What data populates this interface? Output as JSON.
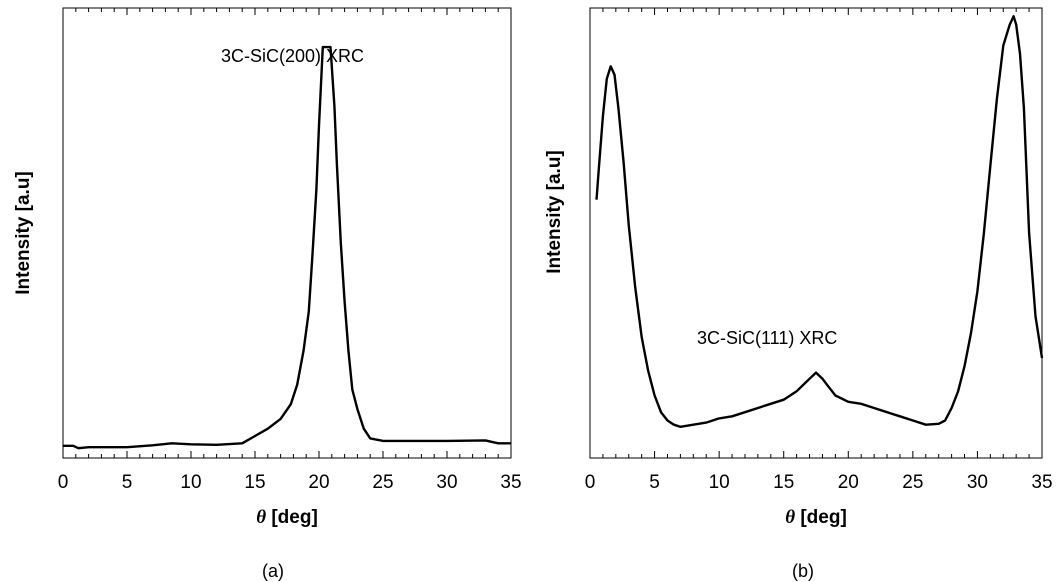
{
  "chart_data": [
    {
      "type": "line",
      "panel_label": "(a)",
      "annotation": "3C-SiC(200) XRC",
      "xlabel_symbol": "θ",
      "xlabel": "[deg]",
      "ylabel": "Intensity [a.u]",
      "xlim": [
        0,
        35
      ],
      "ylim": [
        0,
        1
      ],
      "x_ticks": [
        "0",
        "5",
        "10",
        "15",
        "20",
        "25",
        "30",
        "35"
      ],
      "grid": false,
      "series": [
        {
          "x": [
            0,
            0.8,
            1.2,
            2,
            5,
            7,
            8.5,
            10,
            12,
            14,
            15,
            16,
            17,
            17.8,
            18.3,
            18.8,
            19.2,
            19.5,
            19.8,
            20,
            20.3,
            20.6,
            20.9,
            21.2,
            21.4,
            21.7,
            22,
            22.3,
            22.6,
            23,
            23.5,
            24,
            25,
            30,
            33,
            34,
            35
          ],
          "y": [
            0.025,
            0.025,
            0.02,
            0.022,
            0.022,
            0.026,
            0.03,
            0.028,
            0.027,
            0.03,
            0.045,
            0.06,
            0.08,
            0.11,
            0.15,
            0.22,
            0.3,
            0.42,
            0.55,
            0.68,
            0.84,
            0.84,
            0.84,
            0.72,
            0.6,
            0.44,
            0.32,
            0.22,
            0.14,
            0.1,
            0.06,
            0.04,
            0.035,
            0.035,
            0.036,
            0.03,
            0.03
          ]
        }
      ]
    },
    {
      "type": "line",
      "panel_label": "(b)",
      "annotation": "3C-SiC(111) XRC",
      "xlabel_symbol": "θ",
      "xlabel": "[deg]",
      "ylabel": "Intensity [a.u]",
      "xlim": [
        0,
        35
      ],
      "ylim": [
        0,
        1
      ],
      "x_ticks": [
        "0",
        "5",
        "10",
        "15",
        "20",
        "25",
        "30",
        "35"
      ],
      "grid": false,
      "series": [
        {
          "x": [
            0.5,
            0.7,
            1,
            1.3,
            1.6,
            1.9,
            2.2,
            2.6,
            3,
            3.5,
            4,
            4.5,
            5,
            5.5,
            6,
            6.5,
            7,
            8,
            9,
            10,
            11,
            12,
            13,
            14,
            15,
            16,
            17,
            17.5,
            18,
            18.5,
            19,
            20,
            21,
            22,
            23,
            24,
            25,
            26,
            27,
            27.5,
            28,
            28.5,
            29,
            29.5,
            30,
            30.5,
            31,
            31.5,
            32,
            32.5,
            32.8,
            33,
            33.3,
            33.6,
            34,
            34.5,
            35
          ],
          "y": [
            0.58,
            0.66,
            0.78,
            0.87,
            0.9,
            0.88,
            0.8,
            0.67,
            0.52,
            0.37,
            0.25,
            0.17,
            0.11,
            0.07,
            0.05,
            0.04,
            0.035,
            0.04,
            0.045,
            0.055,
            0.06,
            0.07,
            0.08,
            0.09,
            0.1,
            0.12,
            0.15,
            0.165,
            0.15,
            0.13,
            0.11,
            0.095,
            0.09,
            0.08,
            0.07,
            0.06,
            0.05,
            0.04,
            0.042,
            0.05,
            0.08,
            0.12,
            0.18,
            0.26,
            0.36,
            0.5,
            0.66,
            0.82,
            0.95,
            1.0,
            1.02,
            1.0,
            0.93,
            0.8,
            0.5,
            0.3,
            0.2
          ]
        }
      ]
    }
  ]
}
